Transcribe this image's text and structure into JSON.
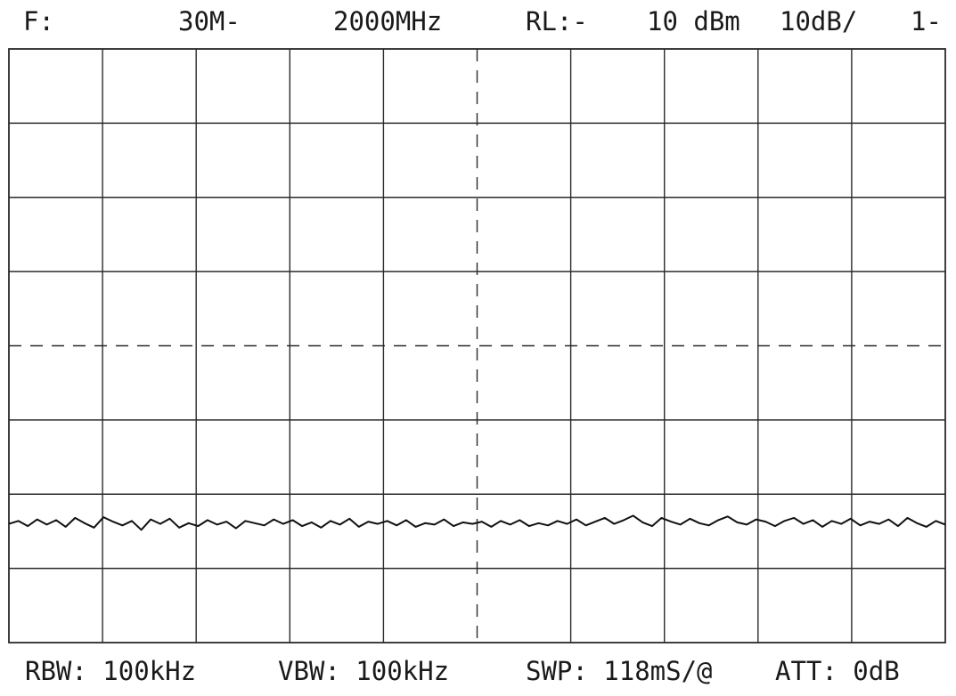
{
  "header": {
    "f_label": "F:",
    "start": "30M-",
    "stop": "2000MHz",
    "rl_label": "RL:-",
    "rl_value": "10 dBm",
    "scale": "10dB/",
    "index": "1-"
  },
  "footer": {
    "rbw": "RBW: 100kHz",
    "vbw": "VBW: 100kHz",
    "swp": "SWP: 118mS/@",
    "att": "ATT:  0dB"
  },
  "colors": {
    "trace": "#111111",
    "grid": "#2a2a2a",
    "background": "#ffffff"
  },
  "chart_data": {
    "type": "line",
    "title": "",
    "xlabel": "",
    "ylabel": "",
    "x_range_mhz": [
      30,
      2000
    ],
    "ref_level_dbm": -10,
    "db_per_div": 10,
    "y_range_dbm": [
      -90,
      -10
    ],
    "grid_divisions": {
      "x": 10,
      "y": 8
    },
    "grid": true,
    "center_lines_dashed": true,
    "series": [
      {
        "values_dbm": [
          -74.0,
          -73.6,
          -74.3,
          -73.4,
          -74.1,
          -73.5,
          -74.4,
          -73.2,
          -73.9,
          -74.5,
          -73.1,
          -73.7,
          -74.2,
          -73.6,
          -74.8,
          -73.4,
          -74.0,
          -73.3,
          -74.5,
          -73.9,
          -74.3,
          -73.5,
          -74.1,
          -73.7,
          -74.6,
          -73.6,
          -73.9,
          -74.2,
          -73.4,
          -74.0,
          -73.5,
          -74.3,
          -73.8,
          -74.5,
          -73.6,
          -74.1,
          -73.3,
          -74.4,
          -73.7,
          -74.0,
          -73.6,
          -74.2,
          -73.5,
          -74.4,
          -73.9,
          -74.1,
          -73.4,
          -74.3,
          -73.8,
          -74.0,
          -73.7,
          -74.4,
          -73.6,
          -74.1,
          -73.5,
          -74.3,
          -73.9,
          -74.2,
          -73.6,
          -74.0,
          -73.4,
          -74.2,
          -73.7,
          -73.2,
          -74.0,
          -73.5,
          -72.9,
          -73.8,
          -74.3,
          -73.2,
          -73.7,
          -74.1,
          -73.3,
          -73.9,
          -74.2,
          -73.5,
          -73.0,
          -73.8,
          -74.1,
          -73.4,
          -73.7,
          -74.3,
          -73.6,
          -73.2,
          -74.0,
          -73.5,
          -74.4,
          -73.6,
          -74.0,
          -73.3,
          -74.2,
          -73.7,
          -74.0,
          -73.4,
          -74.3,
          -73.2,
          -73.9,
          -74.4,
          -73.6,
          -74.1
        ]
      }
    ]
  }
}
